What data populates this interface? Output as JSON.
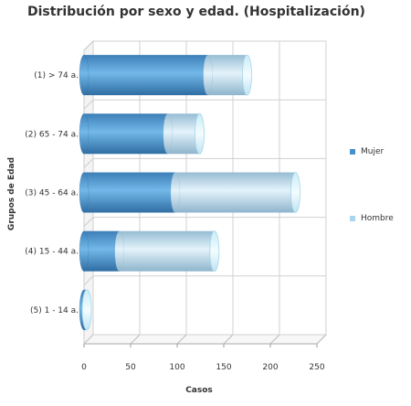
{
  "chart_data": {
    "type": "bar",
    "orientation": "horizontal",
    "stacked": true,
    "title": "Distribución por sexo y edad. (Hospitalización)",
    "xlabel": "Casos",
    "ylabel": "Grupos de Edad",
    "xlim": [
      0,
      250
    ],
    "xticks": [
      "0",
      "50",
      "100",
      "150",
      "200",
      "250"
    ],
    "categories": [
      "(1) > 74 a.",
      "(2) 65 - 74 a.",
      "(3) 45 - 64 a.",
      "(4) 15 - 44 a.",
      "(5) 1 - 14 a."
    ],
    "series": [
      {
        "name": "Mujer",
        "values": [
          133,
          90,
          98,
          38,
          3
        ],
        "color": "#4a90c8"
      },
      {
        "name": "Hombre",
        "values": [
          42,
          34,
          129,
          102,
          0
        ],
        "color": "#a7d4ee"
      }
    ],
    "grid": true,
    "legend_position": "right"
  }
}
